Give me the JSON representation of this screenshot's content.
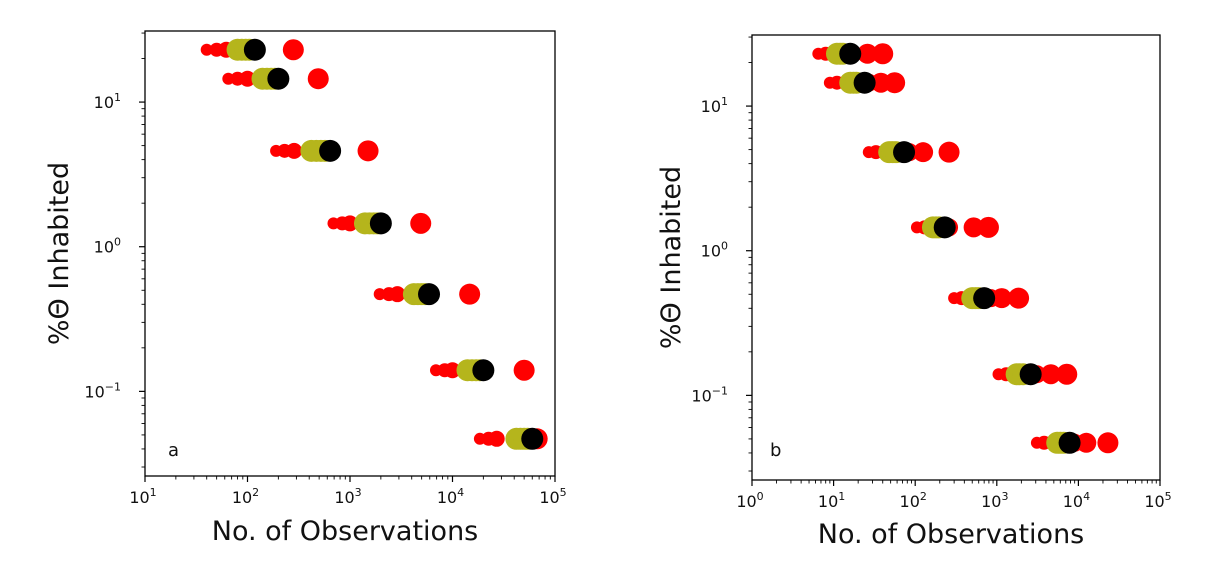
{
  "colors": {
    "red": "#ff0000",
    "olive": "#b5b51c",
    "black": "#000000",
    "axis": "#000000"
  },
  "chart_data": [
    {
      "type": "scatter",
      "panel_label": "a",
      "xlabel": "No. of Observations",
      "ylabel": "%Θ Inhabited",
      "xscale": "log",
      "yscale": "log",
      "xlim": [
        10,
        100000
      ],
      "ylim": [
        0.026,
        31
      ],
      "x_ticks": [
        {
          "value": 10,
          "base": "10",
          "exp": "1"
        },
        {
          "value": 100,
          "base": "10",
          "exp": "2"
        },
        {
          "value": 1000,
          "base": "10",
          "exp": "3"
        },
        {
          "value": 10000,
          "base": "10",
          "exp": "4"
        },
        {
          "value": 100000,
          "base": "10",
          "exp": "5"
        }
      ],
      "y_ticks": [
        {
          "value": 10,
          "base": "10",
          "exp": "1"
        },
        {
          "value": 1,
          "base": "10",
          "exp": "0"
        },
        {
          "value": 0.1,
          "base": "10",
          "exp": "−1"
        }
      ],
      "rows": [
        {
          "y": 23,
          "red_small": [
            40,
            50,
            62
          ],
          "red_big": 280,
          "olive": [
            80,
            88,
            96,
            104
          ],
          "black": 118
        },
        {
          "y": 14.5,
          "red_small": [
            65,
            80,
            100
          ],
          "red_big": 490,
          "olive": [
            140,
            155,
            170,
            185
          ],
          "black": 200
        },
        {
          "y": 4.6,
          "red_small": [
            190,
            230,
            285
          ],
          "red_big": 1500,
          "olive": [
            420,
            470,
            520,
            570
          ],
          "black": 640
        },
        {
          "y": 1.45,
          "red_small": [
            690,
            840,
            1000
          ],
          "red_big": 4900,
          "olive": [
            1400,
            1550,
            1700,
            1850
          ],
          "black": 2000
        },
        {
          "y": 0.47,
          "red_small": [
            1950,
            2400,
            2900
          ],
          "red_big": 14700,
          "olive": [
            4200,
            4600,
            5000,
            5400
          ],
          "black": 5900
        },
        {
          "y": 0.14,
          "red_small": [
            6900,
            8400,
            10000
          ],
          "red_big": 50000,
          "olive": [
            14000,
            15500,
            17000,
            18500
          ],
          "black": 20000
        },
        {
          "y": 0.047,
          "red_small": [
            18500,
            22500,
            27000
          ],
          "red_big": 67000,
          "olive": [
            42000,
            46000,
            50000,
            54000
          ],
          "black": 60000
        }
      ]
    },
    {
      "type": "scatter",
      "panel_label": "b",
      "xlabel": "No. of Observations",
      "ylabel": "%Θ Inhabited",
      "xscale": "log",
      "yscale": "log",
      "xlim": [
        1,
        100000
      ],
      "ylim": [
        0.026,
        31
      ],
      "x_ticks": [
        {
          "value": 1,
          "base": "10",
          "exp": "0"
        },
        {
          "value": 10,
          "base": "10",
          "exp": "1"
        },
        {
          "value": 100,
          "base": "10",
          "exp": "2"
        },
        {
          "value": 1000,
          "base": "10",
          "exp": "3"
        },
        {
          "value": 10000,
          "base": "10",
          "exp": "4"
        },
        {
          "value": 100000,
          "base": "10",
          "exp": "5"
        }
      ],
      "y_ticks": [
        {
          "value": 10,
          "base": "10",
          "exp": "1"
        },
        {
          "value": 1,
          "base": "10",
          "exp": "0"
        },
        {
          "value": 0.1,
          "base": "10",
          "exp": "−1"
        }
      ],
      "rows": [
        {
          "y": 23,
          "red_small": [
            6.5,
            8
          ],
          "red_mid": [
            12,
            16,
            26
          ],
          "red_big": 40,
          "olive": [
            11,
            12,
            13
          ],
          "black": 16
        },
        {
          "y": 14.5,
          "red_small": [
            9,
            11
          ],
          "red_mid": [
            20,
            27,
            38
          ],
          "red_big": 56,
          "olive": [
            16,
            17.5,
            19
          ],
          "black": 24
        },
        {
          "y": 4.8,
          "red_small": [
            27,
            33
          ],
          "red_mid": [
            60,
            85,
            125
          ],
          "red_big": 260,
          "olive": [
            48,
            53,
            58
          ],
          "black": 73
        },
        {
          "y": 1.45,
          "red_small": [
            105,
            130
          ],
          "red_mid": [
            190,
            260,
            520
          ],
          "red_big": 790,
          "olive": [
            165,
            180,
            195
          ],
          "black": 230
        },
        {
          "y": 0.47,
          "red_small": [
            300,
            370
          ],
          "red_mid": [
            650,
            850,
            1150
          ],
          "red_big": 1850,
          "olive": [
            500,
            550,
            600
          ],
          "black": 700
        },
        {
          "y": 0.14,
          "red_small": [
            1050,
            1300
          ],
          "red_mid": [
            2100,
            3100,
            4600
          ],
          "red_big": 7200,
          "olive": [
            1750,
            1900,
            2100
          ],
          "black": 2600
        },
        {
          "y": 0.047,
          "red_small": [
            3100,
            3800
          ],
          "red_mid": [
            6800,
            9000,
            12500
          ],
          "red_big": 23000,
          "olive": [
            5500,
            6000,
            6600
          ],
          "black": 7800
        }
      ]
    }
  ]
}
